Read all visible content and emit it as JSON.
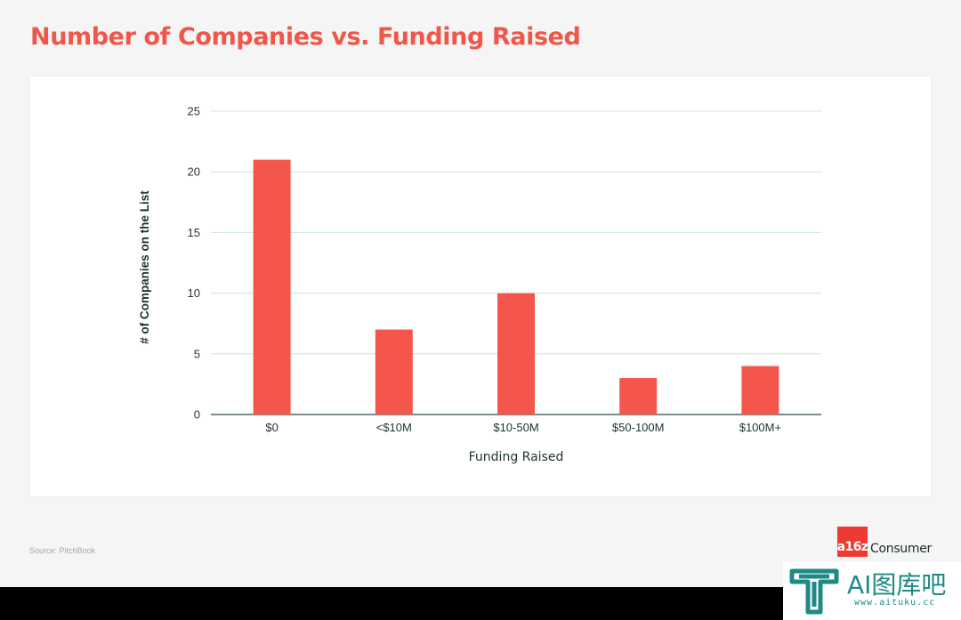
{
  "header": {
    "title": "Number of Companies vs. Funding Raised"
  },
  "footer": {
    "source": "Source: PitchBook",
    "brand_badge": "a16z",
    "brand_name": "Consumer"
  },
  "watermark": {
    "text": "AI图库吧",
    "url": "www.aituku.cc",
    "icon": "t-logo-icon"
  },
  "colors": {
    "accent": "#f0564a",
    "bar": "#f5564c",
    "gridline": "#c9e6db",
    "axis": "#2f4b47",
    "label": "#1f3330",
    "background": "#f4f5f4",
    "card": "#ffffff"
  },
  "chart_data": {
    "type": "bar",
    "title": "Number of Companies vs. Funding Raised",
    "xlabel": "Funding Raised",
    "ylabel": "# of Companies on the List",
    "categories": [
      "$0",
      "<$10M",
      "$10-50M",
      "$50-100M",
      "$100M+"
    ],
    "values": [
      21,
      7,
      10,
      3,
      4
    ],
    "ylim": [
      0,
      25
    ],
    "yticks": [
      "0",
      "5",
      "10",
      "15",
      "20",
      "25"
    ],
    "grid": true,
    "legend": "none"
  }
}
